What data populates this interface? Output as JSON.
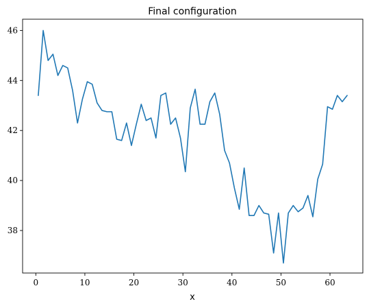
{
  "chart_data": {
    "type": "line",
    "title": "Final configuration",
    "xlabel": "x",
    "ylabel": "",
    "xlim": [
      -2.7,
      66.7
    ],
    "ylim": [
      36.3,
      46.45
    ],
    "xticks": [
      0,
      10,
      20,
      30,
      40,
      50,
      60
    ],
    "yticks": [
      38,
      40,
      42,
      44,
      46
    ],
    "grid": false,
    "colors": {
      "line": "#1f77b4"
    },
    "series": [
      {
        "x": [
          0.5,
          1.5,
          2.5,
          3.5,
          4.5,
          5.5,
          6.5,
          7.5,
          8.5,
          9.5,
          10.5,
          11.5,
          12.5,
          13.5,
          14.5,
          15.5,
          16.5,
          17.5,
          18.5,
          19.5,
          20.5,
          21.5,
          22.5,
          23.5,
          24.5,
          25.5,
          26.5,
          27.5,
          28.5,
          29.5,
          30.5,
          31.5,
          32.5,
          33.5,
          34.5,
          35.5,
          36.5,
          37.5,
          38.5,
          39.5,
          40.5,
          41.5,
          42.5,
          43.5,
          44.5,
          45.5,
          46.5,
          47.5,
          48.5,
          49.5,
          50.5,
          51.5,
          52.5,
          53.5,
          54.5,
          55.5,
          56.5,
          57.5,
          58.5,
          59.5,
          60.5,
          61.5,
          62.5,
          63.5
        ],
        "y": [
          43.4,
          46.0,
          44.8,
          45.05,
          44.2,
          44.6,
          44.5,
          43.6,
          42.3,
          43.25,
          43.95,
          43.85,
          43.1,
          42.8,
          42.75,
          42.75,
          41.65,
          41.6,
          42.3,
          41.4,
          42.25,
          43.05,
          42.4,
          42.5,
          41.7,
          43.4,
          43.5,
          42.25,
          42.5,
          41.7,
          40.35,
          42.9,
          43.65,
          42.25,
          42.25,
          43.15,
          43.5,
          42.65,
          41.2,
          40.7,
          39.7,
          38.85,
          40.5,
          38.6,
          38.6,
          39.0,
          38.7,
          38.65,
          37.1,
          38.7,
          36.7,
          38.7,
          39.0,
          38.75,
          38.9,
          39.4,
          38.55,
          40.05,
          40.65,
          42.95,
          42.85,
          43.4,
          43.15,
          43.4
        ]
      }
    ]
  }
}
